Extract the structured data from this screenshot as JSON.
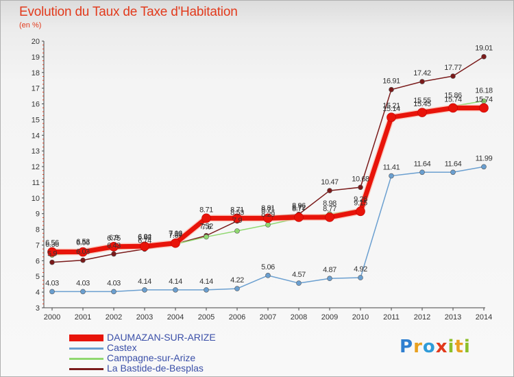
{
  "header": {
    "title": "Evolution du Taux de Taxe d'Habitation",
    "subtitle": "(en %)"
  },
  "logo": {
    "text": "Proxiti",
    "letters": [
      {
        "ch": "P",
        "color": "#2f7fd0"
      },
      {
        "ch": "r",
        "color": "#e8a020"
      },
      {
        "ch": "o",
        "color": "#2f9bd8"
      },
      {
        "ch": "x",
        "color": "#e23a1c"
      },
      {
        "ch": "i",
        "color": "#8cbf2a"
      },
      {
        "ch": "t",
        "color": "#e8a020"
      },
      {
        "ch": "i",
        "color": "#8cbf2a"
      }
    ]
  },
  "chart_data": {
    "type": "line",
    "title": "Evolution du Taux de Taxe d'Habitation",
    "subtitle": "(en %)",
    "x": [
      "2000",
      "2001",
      "2002",
      "2003",
      "2004",
      "2005",
      "2006",
      "2007",
      "2008",
      "2009",
      "2010",
      "2011",
      "2012",
      "2013",
      "2014"
    ],
    "ylim": [
      3,
      20
    ],
    "yticks": [
      3,
      4,
      5,
      6,
      7,
      8,
      9,
      10,
      11,
      12,
      13,
      14,
      15,
      16,
      17,
      18,
      19,
      20
    ],
    "grid": false,
    "legend_position": "bottom-left",
    "series": [
      {
        "name": "DAUMAZAN-SUR-ARIZE",
        "color": "#e8140a",
        "values": [
          6.56,
          6.56,
          6.9,
          6.92,
          7.12,
          8.71,
          8.71,
          8.71,
          8.77,
          8.77,
          9.15,
          15.14,
          15.45,
          15.74,
          15.74
        ]
      },
      {
        "name": "Castex",
        "color": "#6a9fd0",
        "values": [
          4.03,
          4.03,
          4.03,
          4.14,
          4.14,
          4.14,
          4.22,
          5.06,
          4.57,
          4.87,
          4.92,
          11.41,
          11.64,
          11.64,
          11.99
        ]
      },
      {
        "name": "Campagne-sur-Arize",
        "color": "#90d870",
        "values": [
          6.36,
          6.53,
          6.75,
          6.84,
          7.06,
          7.52,
          7.9,
          8.29,
          8.72,
          8.98,
          9.26,
          15.21,
          15.55,
          15.86,
          16.18
        ]
      },
      {
        "name": "La Bastide-de-Besplas",
        "color": "#7a1a1a",
        "values": [
          5.9,
          6.03,
          6.43,
          6.74,
          7.07,
          7.6,
          8.53,
          8.81,
          8.96,
          10.47,
          10.68,
          16.91,
          17.42,
          17.77,
          19.01
        ]
      }
    ],
    "data_labels": [
      [
        "6.56",
        "6.56",
        "6.9",
        "6.92",
        "7.12",
        "8.71",
        "8.71",
        "8.71",
        "8.77",
        "8.77",
        "9.15",
        "15.14",
        "15.45",
        "15.74",
        "15.74"
      ],
      [
        "4.03",
        "4.03",
        "4.03",
        "4.14",
        "4.14",
        "4.14",
        "4.22",
        "5.06",
        "4.57",
        "4.87",
        "4.92",
        "11.41",
        "11.64",
        "11.64",
        "11.99"
      ],
      [
        "6.36",
        "6.53",
        "6.75",
        "6.84",
        "7.06",
        "7.52",
        "7.9",
        "8.29",
        "8.72",
        "8.98",
        "9.26",
        "15.21",
        "15.55",
        "15.86",
        "16.18"
      ],
      [
        "5.9",
        "6.03",
        "6.43",
        "6.74",
        "7.07",
        "7.6",
        "8.53",
        "8.81",
        "8.96",
        "10.47",
        "10.68",
        "16.91",
        "17.42",
        "17.77",
        "19.01"
      ]
    ]
  }
}
